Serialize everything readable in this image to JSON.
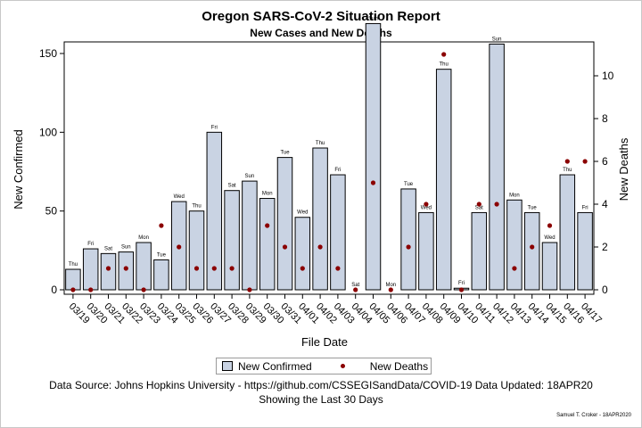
{
  "chart_data": {
    "type": "bar",
    "title": "Oregon SARS-CoV-2 Situation Report",
    "subtitle": "New Cases and New Deaths",
    "xlabel": "File Date",
    "ylabel_left": "New Confirmed",
    "ylabel_right": "New Deaths",
    "ylim_left": [
      0,
      175
    ],
    "ylim_right": [
      0,
      11.5
    ],
    "yticks_left": [
      0,
      50,
      100,
      150
    ],
    "yticks_right": [
      0,
      2,
      4,
      6,
      8,
      10
    ],
    "categories": [
      "03/19",
      "03/20",
      "03/21",
      "03/22",
      "03/23",
      "03/24",
      "03/25",
      "03/26",
      "03/27",
      "03/28",
      "03/29",
      "03/30",
      "03/31",
      "04/01",
      "04/02",
      "04/03",
      "04/04",
      "04/05",
      "04/06",
      "04/07",
      "04/08",
      "04/09",
      "04/10",
      "04/11",
      "04/12",
      "04/13",
      "04/14",
      "04/15",
      "04/16",
      "04/17"
    ],
    "day_labels": [
      "Thu",
      "Fri",
      "Sat",
      "Sun",
      "Mon",
      "Tue",
      "Wed",
      "Thu",
      "Fri",
      "Sat",
      "Sun",
      "Mon",
      "Tue",
      "Wed",
      "Thu",
      "Fri",
      "Sat",
      "Sun",
      "Mon",
      "Tue",
      "Wed",
      "Thu",
      "Fri",
      "Sat",
      "Sun",
      "Mon",
      "Tue",
      "Wed",
      "Thu",
      "Fri"
    ],
    "series": [
      {
        "name": "New Confirmed",
        "type": "bar",
        "axis": "left",
        "color": "#c9d3e3",
        "values": [
          13,
          26,
          23,
          24,
          30,
          19,
          56,
          50,
          100,
          63,
          69,
          58,
          84,
          46,
          90,
          73,
          0,
          169,
          0,
          64,
          49,
          140,
          1,
          49,
          156,
          57,
          49,
          30,
          73,
          49
        ]
      },
      {
        "name": "New Deaths",
        "type": "scatter",
        "axis": "right",
        "color": "#8b0000",
        "values": [
          0,
          0,
          1,
          1,
          0,
          3,
          2,
          1,
          1,
          1,
          0,
          3,
          2,
          1,
          2,
          1,
          0,
          5,
          0,
          2,
          4,
          11,
          0,
          4,
          4,
          1,
          2,
          3,
          6,
          6
        ]
      }
    ],
    "legend_position": "bottom",
    "grid": false
  },
  "footer": {
    "source": "Data Source: Johns Hopkins University - https://github.com/CSSEGISandData/COVID-19 Data Updated: 18APR20",
    "note": "Showing the Last 30 Days",
    "credit": "Samuel T. Croker - 18APR2020"
  }
}
